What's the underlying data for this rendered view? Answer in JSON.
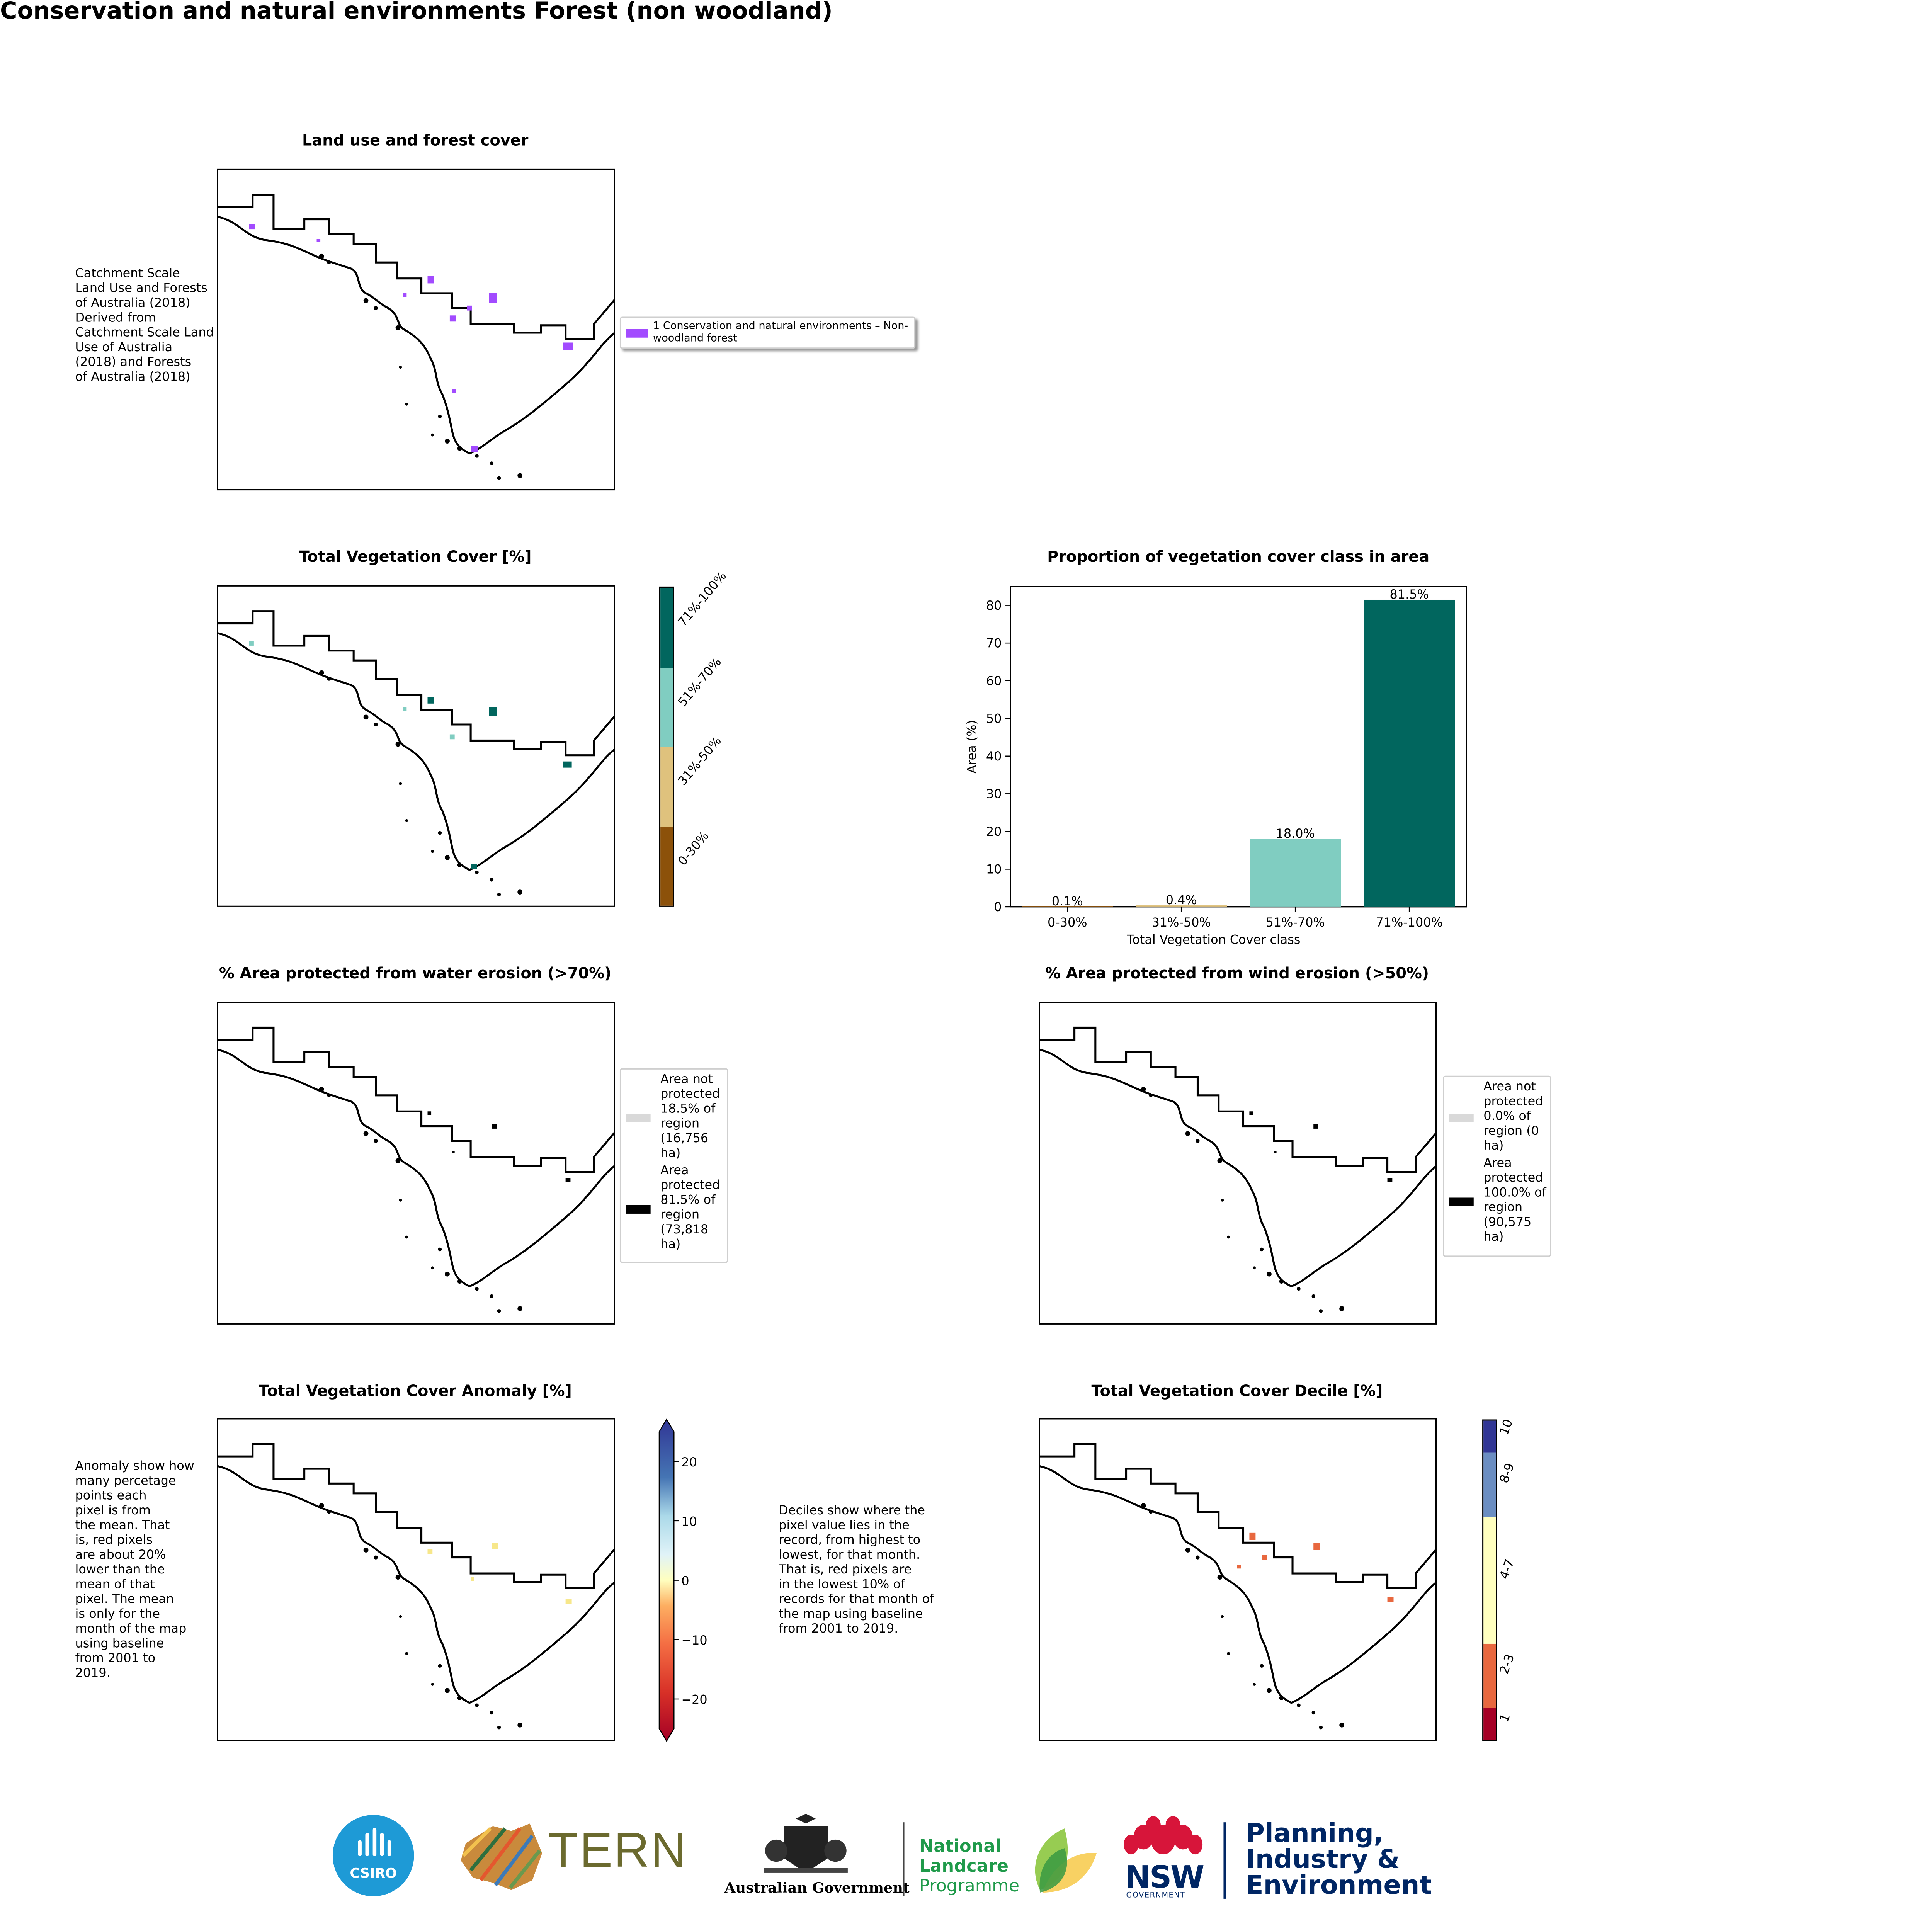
{
  "page_title": "Conservation and natural environments Forest (non woodland)",
  "panels": {
    "land_use": {
      "title": "Land use and forest cover",
      "side_text": "Catchment Scale\nLand Use and Forests\nof Australia (2018)\nDerived from\nCatchment Scale Land\nUse of Australia\n(2018) and Forests\nof Australia (2018)",
      "legend_label": "1 Conservation and natural environments – Non-\nwoodland forest",
      "legend_color": "#a24bff"
    },
    "tvc": {
      "title": "Total Vegetation Cover [%]",
      "colorbar": [
        {
          "label": "0-30%",
          "color": "#8c510a"
        },
        {
          "label": "31%-50%",
          "color": "#dfc27d"
        },
        {
          "label": "51%-70%",
          "color": "#80cdc1"
        },
        {
          "label": "71%-100%",
          "color": "#01665e"
        }
      ]
    },
    "water": {
      "title": "% Area protected from water erosion (>70%)",
      "legend": [
        {
          "label": "Area not\nprotected\n18.5% of\nregion\n(16,756\nha)",
          "color": "#d9d9d9"
        },
        {
          "label": "Area\nprotected\n81.5% of\nregion\n(73,818\nha)",
          "color": "#000000"
        }
      ]
    },
    "wind": {
      "title": "% Area protected from wind erosion (>50%)",
      "legend": [
        {
          "label": "Area not\nprotected\n0.0% of\nregion (0\nha)",
          "color": "#d9d9d9"
        },
        {
          "label": "Area\nprotected\n100.0% of\nregion\n(90,575\nha)",
          "color": "#000000"
        }
      ]
    },
    "anomaly": {
      "title": "Total Vegetation Cover Anomaly [%]",
      "side_text": "Anomaly show how\nmany percetage\npoints each\npixel is from\nthe mean. That\nis, red pixels\nare about 20%\nlower than the\nmean of that\npixel. The mean\nis only for the\nmonth of the map\nusing baseline\nfrom 2001 to\n2019.",
      "colorbar_ticks": [
        "20",
        "10",
        "0",
        "−10",
        "−20"
      ]
    },
    "decile": {
      "title": "Total Vegetation Cover Decile [%]",
      "side_text": "Deciles show where the\npixel value lies in the\nrecord, from highest to\nlowest, for that month.\nThat is, red pixels are\nin the lowest 10% of\nrecords for that month of\nthe map using baseline\nfrom 2001 to 2019.",
      "colorbar": [
        {
          "label": "1",
          "color": "#a50026"
        },
        {
          "label": "2-3",
          "color": "#e8683f"
        },
        {
          "label": "4-7",
          "color": "#ffffbf"
        },
        {
          "label": "8-9",
          "color": "#6b8ec2"
        },
        {
          "label": "10",
          "color": "#313695"
        }
      ]
    }
  },
  "chart_data": {
    "type": "bar",
    "title": "Proportion of vegetation cover class in area",
    "xlabel": "Total Vegetation Cover class",
    "ylabel": "Area (%)",
    "categories": [
      "0-30%",
      "31%-50%",
      "51%-70%",
      "71%-100%"
    ],
    "values": [
      0.1,
      0.4,
      18.0,
      81.5
    ],
    "data_labels": [
      "0.1%",
      "0.4%",
      "18.0%",
      "81.5%"
    ],
    "colors": [
      "#8c510a",
      "#dfc27d",
      "#80cdc1",
      "#01665e"
    ],
    "ylim": [
      0,
      85
    ],
    "yticks": [
      0,
      10,
      20,
      30,
      40,
      50,
      60,
      70,
      80
    ],
    "grid": false
  },
  "logos": {
    "csiro": "CSIRO",
    "tern": "TERN",
    "australian_government": "Australian Government",
    "national_landcare": [
      "National",
      "Landcare",
      "Programme"
    ],
    "nsw": "NSW",
    "nsw_sub": "GOVERNMENT",
    "planning": [
      "Planning,",
      "Industry &",
      "Environment"
    ]
  }
}
